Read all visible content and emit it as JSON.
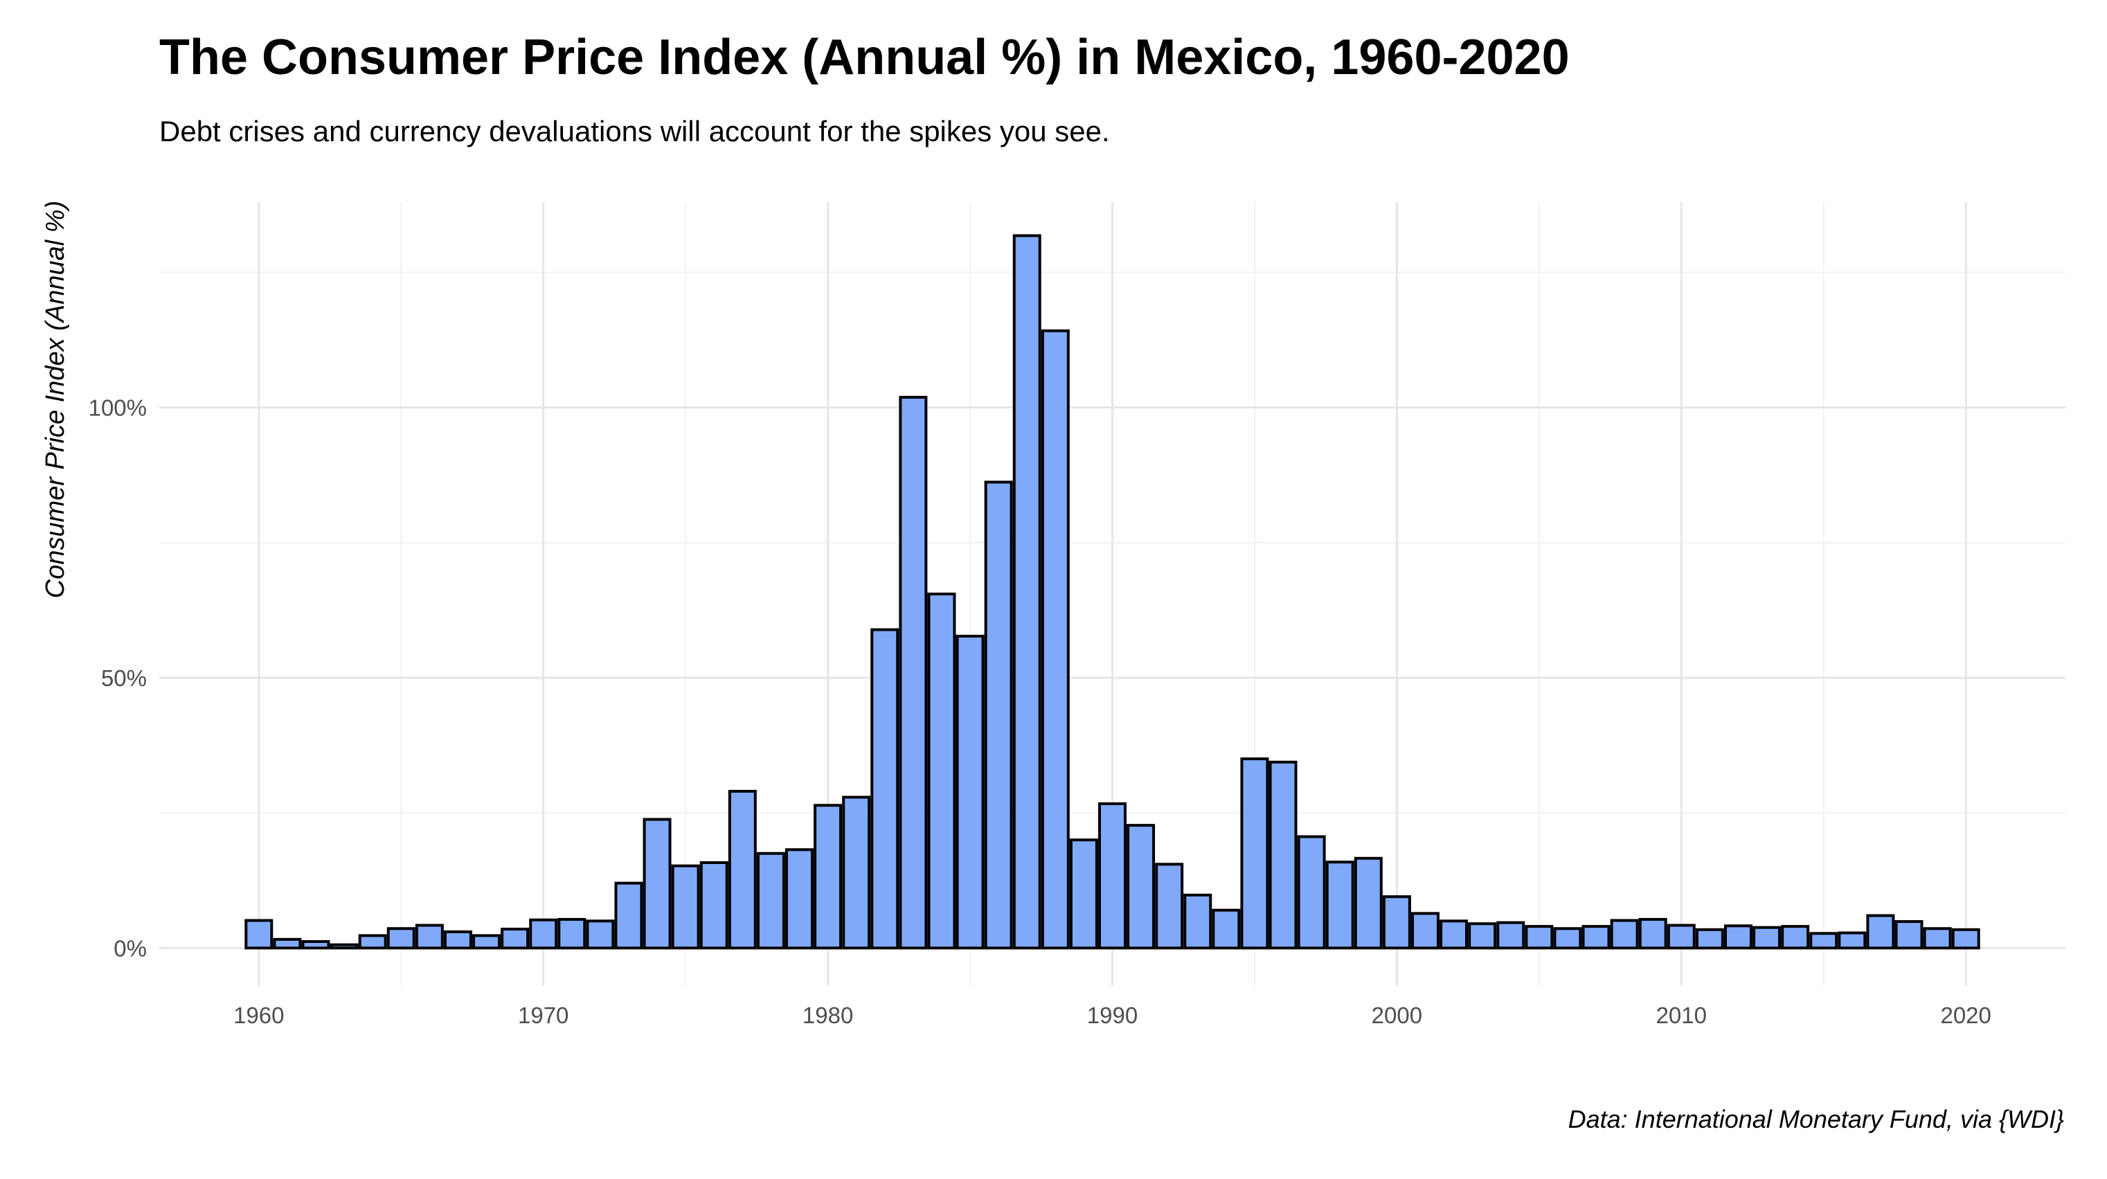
{
  "chart_data": {
    "type": "bar",
    "title": "The Consumer Price Index (Annual %) in Mexico, 1960-2020",
    "subtitle": "Debt crises and currency devaluations will account for the spikes you see.",
    "caption": "Data: International Monetary Fund, via {WDI}",
    "xlabel": "",
    "ylabel": "Consumer Price Index (Annual %)",
    "x_ticks": [
      "1960",
      "1970",
      "1980",
      "1990",
      "2000",
      "2010",
      "2020"
    ],
    "y_ticks": [
      "0%",
      "50%",
      "100%"
    ],
    "xlim": [
      1956.5,
      2023.5
    ],
    "ylim": [
      -7,
      138
    ],
    "grid": true,
    "legend": "none",
    "bar_fill": "#80AAF9",
    "bar_outline": "#000000",
    "x": [
      1960,
      1961,
      1962,
      1963,
      1964,
      1965,
      1966,
      1967,
      1968,
      1969,
      1970,
      1971,
      1972,
      1973,
      1974,
      1975,
      1976,
      1977,
      1978,
      1979,
      1980,
      1981,
      1982,
      1983,
      1984,
      1985,
      1986,
      1987,
      1988,
      1989,
      1990,
      1991,
      1992,
      1993,
      1994,
      1995,
      1996,
      1997,
      1998,
      1999,
      2000,
      2001,
      2002,
      2003,
      2004,
      2005,
      2006,
      2007,
      2008,
      2009,
      2010,
      2011,
      2012,
      2013,
      2014,
      2015,
      2016,
      2017,
      2018,
      2019,
      2020
    ],
    "values": [
      5.1,
      1.6,
      1.2,
      0.6,
      2.3,
      3.6,
      4.2,
      3.0,
      2.3,
      3.5,
      5.2,
      5.3,
      5.0,
      12.0,
      23.8,
      15.2,
      15.8,
      29.0,
      17.5,
      18.2,
      26.4,
      27.9,
      58.9,
      101.9,
      65.5,
      57.7,
      86.2,
      131.8,
      114.2,
      20.0,
      26.7,
      22.7,
      15.5,
      9.8,
      7.0,
      35.0,
      34.4,
      20.6,
      15.9,
      16.6,
      9.5,
      6.4,
      5.0,
      4.5,
      4.7,
      4.0,
      3.6,
      4.0,
      5.1,
      5.3,
      4.2,
      3.4,
      4.1,
      3.8,
      4.0,
      2.7,
      2.8,
      6.0,
      4.9,
      3.6,
      3.4
    ]
  }
}
